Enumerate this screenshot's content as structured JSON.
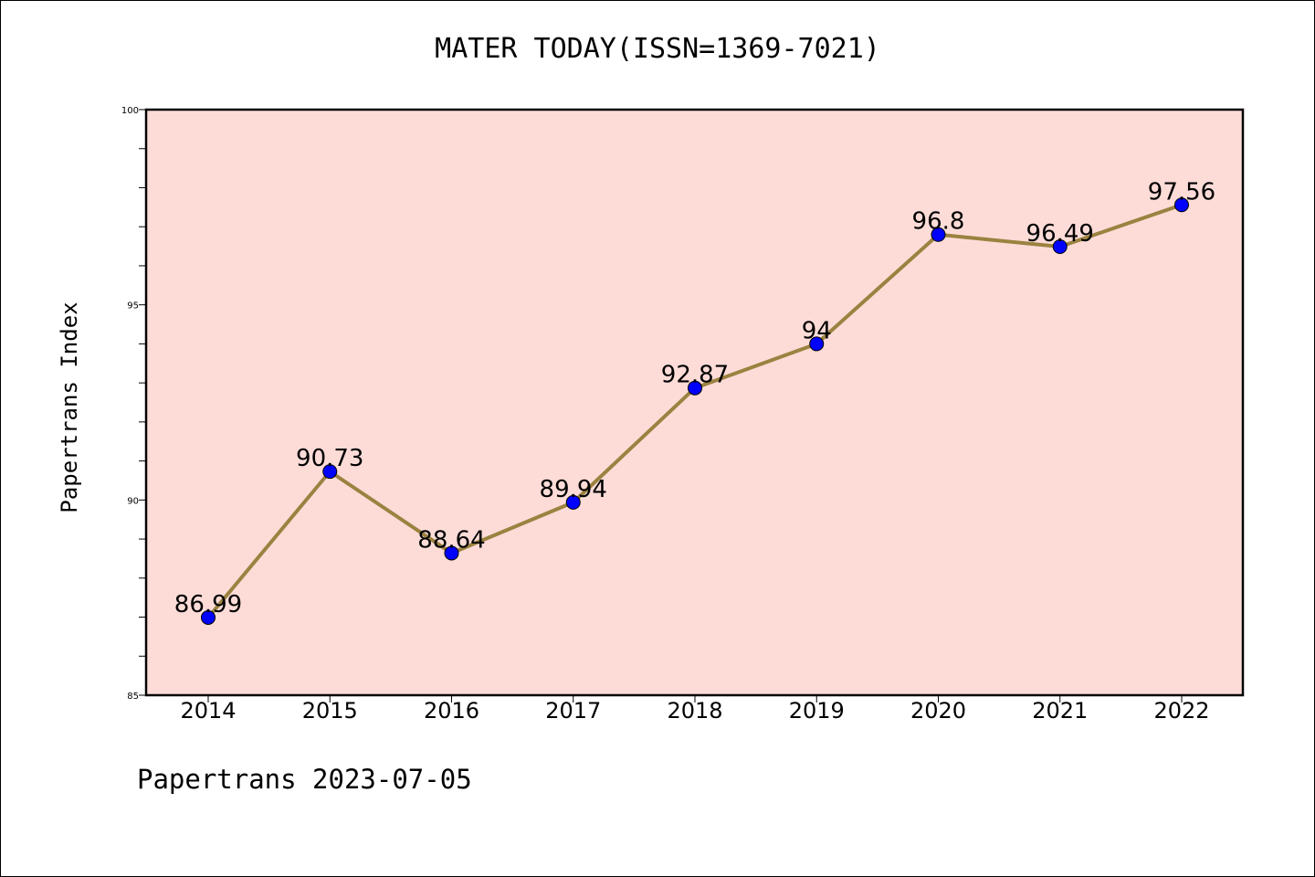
{
  "chart_data": {
    "type": "line",
    "title": "MATER TODAY(ISSN=1369-7021)",
    "xlabel": "",
    "ylabel": "Papertrans Index",
    "categories": [
      "2014",
      "2015",
      "2016",
      "2017",
      "2018",
      "2019",
      "2020",
      "2021",
      "2022"
    ],
    "series": [
      {
        "values": [
          86.99,
          90.73,
          88.64,
          89.94,
          92.87,
          94,
          96.8,
          96.49,
          97.56
        ],
        "data_labels": [
          "86.99",
          "90.73",
          "88.64",
          "89.94",
          "92.87",
          "94",
          "96.8",
          "96.49",
          "97.56"
        ]
      }
    ],
    "ylim": [
      85,
      100
    ],
    "yticks": [
      85,
      90,
      95,
      100
    ],
    "ytick_labels": [
      "85",
      "90",
      "95",
      "100"
    ],
    "grid": false,
    "colors": {
      "plot_background": "#fddcd8",
      "line": "#9b8240",
      "marker": "#0000ff"
    }
  },
  "footer": "Papertrans 2023-07-05"
}
